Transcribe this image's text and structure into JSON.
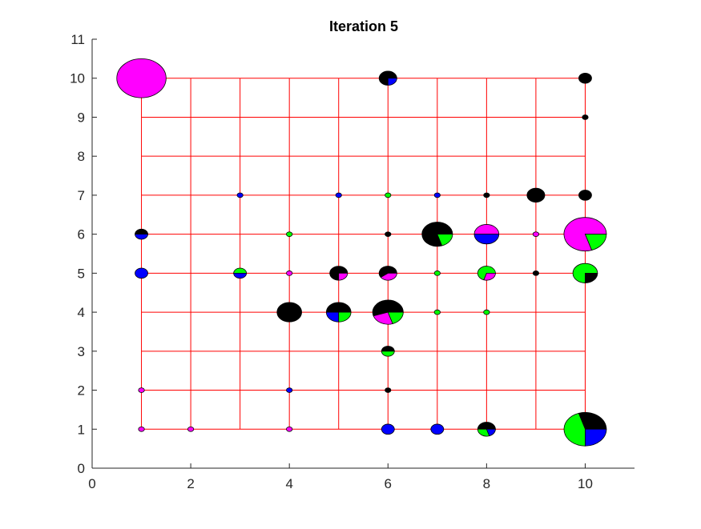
{
  "chart_data": {
    "type": "scatter",
    "subtype": "pie-glyph-map",
    "title": "Iteration 5",
    "xlabel": "",
    "ylabel": "",
    "xlim": [
      0,
      11
    ],
    "ylim": [
      0,
      11
    ],
    "x_ticks": [
      0,
      2,
      4,
      6,
      8,
      10
    ],
    "y_ticks": [
      0,
      1,
      2,
      3,
      4,
      5,
      6,
      7,
      8,
      9,
      10,
      11
    ],
    "x_tick_labels": [
      "0",
      "2",
      "4",
      "6",
      "8",
      "10"
    ],
    "y_tick_labels": [
      "0",
      "1",
      "2",
      "3",
      "4",
      "5",
      "6",
      "7",
      "8",
      "9",
      "10",
      "11"
    ],
    "grid": false,
    "colors": {
      "network": "#ff0000",
      "axis": "#262626",
      "slice_black": "#000000",
      "slice_blue": "#0000ff",
      "slice_green": "#00ff00",
      "slice_magenta": "#ff00ff",
      "outline": "#000000"
    },
    "network": {
      "vertical_lines": [
        {
          "x": 1,
          "y0": 1,
          "y1": 10
        },
        {
          "x": 2,
          "y0": 1,
          "y1": 10
        },
        {
          "x": 3,
          "y0": 1,
          "y1": 10
        },
        {
          "x": 4,
          "y0": 1,
          "y1": 10
        },
        {
          "x": 5,
          "y0": 1,
          "y1": 10
        },
        {
          "x": 6,
          "y0": 1,
          "y1": 10
        },
        {
          "x": 7,
          "y0": 1,
          "y1": 10
        },
        {
          "x": 8,
          "y0": 1,
          "y1": 10
        },
        {
          "x": 9,
          "y0": 1,
          "y1": 10
        },
        {
          "x": 10,
          "y0": 1,
          "y1": 10
        }
      ],
      "horizontal_lines": [
        {
          "y": 1,
          "x0": 1,
          "x1": 10
        },
        {
          "y": 2,
          "x0": 1,
          "x1": 10
        },
        {
          "y": 3,
          "x0": 1,
          "x1": 10
        },
        {
          "y": 4,
          "x0": 1,
          "x1": 10
        },
        {
          "y": 5,
          "x0": 1,
          "x1": 10
        },
        {
          "y": 6,
          "x0": 1,
          "x1": 10
        },
        {
          "y": 7,
          "x0": 1,
          "x1": 10
        },
        {
          "y": 8,
          "x0": 1,
          "x1": 10
        },
        {
          "y": 9,
          "x0": 1,
          "x1": 10
        },
        {
          "y": 10,
          "x0": 1,
          "x1": 10
        }
      ]
    },
    "nodes": [
      {
        "x": 1,
        "y": 10,
        "r": 0.5,
        "slices": [
          {
            "color": "magenta",
            "value": 1
          }
        ]
      },
      {
        "x": 6,
        "y": 10,
        "r": 0.18,
        "slices": [
          {
            "color": "black",
            "value": 0.75
          },
          {
            "color": "blue",
            "value": 0.25
          }
        ]
      },
      {
        "x": 10,
        "y": 10,
        "r": 0.13,
        "slices": [
          {
            "color": "black",
            "value": 1
          }
        ]
      },
      {
        "x": 10,
        "y": 9,
        "r": 0.06,
        "slices": [
          {
            "color": "black",
            "value": 1
          }
        ]
      },
      {
        "x": 3,
        "y": 7,
        "r": 0.06,
        "slices": [
          {
            "color": "blue",
            "value": 1
          }
        ]
      },
      {
        "x": 5,
        "y": 7,
        "r": 0.06,
        "slices": [
          {
            "color": "blue",
            "value": 1
          }
        ]
      },
      {
        "x": 6,
        "y": 7,
        "r": 0.06,
        "slices": [
          {
            "color": "green",
            "value": 1
          }
        ]
      },
      {
        "x": 7,
        "y": 7,
        "r": 0.06,
        "slices": [
          {
            "color": "blue",
            "value": 1
          }
        ]
      },
      {
        "x": 8,
        "y": 7,
        "r": 0.06,
        "slices": [
          {
            "color": "black",
            "value": 1
          }
        ]
      },
      {
        "x": 9,
        "y": 7,
        "r": 0.18,
        "slices": [
          {
            "color": "black",
            "value": 1
          }
        ]
      },
      {
        "x": 10,
        "y": 7,
        "r": 0.13,
        "slices": [
          {
            "color": "black",
            "value": 1
          }
        ]
      },
      {
        "x": 1,
        "y": 6,
        "r": 0.13,
        "slices": [
          {
            "color": "black",
            "value": 0.5
          },
          {
            "color": "blue",
            "value": 0.5
          }
        ]
      },
      {
        "x": 4,
        "y": 6,
        "r": 0.06,
        "slices": [
          {
            "color": "green",
            "value": 1
          }
        ]
      },
      {
        "x": 6,
        "y": 6,
        "r": 0.06,
        "slices": [
          {
            "color": "black",
            "value": 1
          }
        ]
      },
      {
        "x": 7,
        "y": 6,
        "r": 0.31,
        "slices": [
          {
            "color": "black",
            "value": 0.8
          },
          {
            "color": "green",
            "value": 0.2
          }
        ]
      },
      {
        "x": 8,
        "y": 6,
        "r": 0.25,
        "slices": [
          {
            "color": "magenta",
            "value": 0.5
          },
          {
            "color": "blue",
            "value": 0.5
          }
        ]
      },
      {
        "x": 9,
        "y": 6,
        "r": 0.06,
        "slices": [
          {
            "color": "magenta",
            "value": 1
          }
        ]
      },
      {
        "x": 10,
        "y": 6,
        "r": 0.43,
        "slices": [
          {
            "color": "magenta",
            "value": 0.8
          },
          {
            "color": "green",
            "value": 0.2
          }
        ]
      },
      {
        "x": 1,
        "y": 5,
        "r": 0.13,
        "slices": [
          {
            "color": "blue",
            "value": 1
          }
        ]
      },
      {
        "x": 3,
        "y": 5,
        "r": 0.13,
        "slices": [
          {
            "color": "green",
            "value": 0.5
          },
          {
            "color": "blue",
            "value": 0.5
          }
        ]
      },
      {
        "x": 4,
        "y": 5,
        "r": 0.06,
        "slices": [
          {
            "color": "magenta",
            "value": 1
          }
        ]
      },
      {
        "x": 5,
        "y": 5,
        "r": 0.18,
        "slices": [
          {
            "color": "black",
            "value": 0.75
          },
          {
            "color": "magenta",
            "value": 0.25
          }
        ]
      },
      {
        "x": 6,
        "y": 5,
        "r": 0.18,
        "slices": [
          {
            "color": "black",
            "value": 0.6
          },
          {
            "color": "magenta",
            "value": 0.4
          }
        ]
      },
      {
        "x": 7,
        "y": 5,
        "r": 0.06,
        "slices": [
          {
            "color": "green",
            "value": 1
          }
        ]
      },
      {
        "x": 8,
        "y": 5,
        "r": 0.18,
        "slices": [
          {
            "color": "green",
            "value": 0.7
          },
          {
            "color": "magenta",
            "value": 0.3
          }
        ]
      },
      {
        "x": 9,
        "y": 5,
        "r": 0.06,
        "slices": [
          {
            "color": "black",
            "value": 1
          }
        ]
      },
      {
        "x": 10,
        "y": 5,
        "r": 0.25,
        "slices": [
          {
            "color": "green",
            "value": 0.75
          },
          {
            "color": "black",
            "value": 0.25
          }
        ]
      },
      {
        "x": 4,
        "y": 4,
        "r": 0.25,
        "slices": [
          {
            "color": "black",
            "value": 1
          }
        ]
      },
      {
        "x": 5,
        "y": 4,
        "r": 0.25,
        "slices": [
          {
            "color": "black",
            "value": 0.5
          },
          {
            "color": "blue",
            "value": 0.25
          },
          {
            "color": "green",
            "value": 0.25
          }
        ]
      },
      {
        "x": 6,
        "y": 4,
        "r": 0.31,
        "slices": [
          {
            "color": "black",
            "value": 0.55
          },
          {
            "color": "magenta",
            "value": 0.25
          },
          {
            "color": "green",
            "value": 0.2
          }
        ]
      },
      {
        "x": 7,
        "y": 4,
        "r": 0.06,
        "slices": [
          {
            "color": "green",
            "value": 1
          }
        ]
      },
      {
        "x": 8,
        "y": 4,
        "r": 0.06,
        "slices": [
          {
            "color": "green",
            "value": 1
          }
        ]
      },
      {
        "x": 6,
        "y": 3,
        "r": 0.13,
        "slices": [
          {
            "color": "black",
            "value": 0.5
          },
          {
            "color": "green",
            "value": 0.5
          }
        ]
      },
      {
        "x": 1,
        "y": 2,
        "r": 0.06,
        "slices": [
          {
            "color": "magenta",
            "value": 1
          }
        ]
      },
      {
        "x": 4,
        "y": 2,
        "r": 0.06,
        "slices": [
          {
            "color": "blue",
            "value": 1
          }
        ]
      },
      {
        "x": 6,
        "y": 2,
        "r": 0.06,
        "slices": [
          {
            "color": "black",
            "value": 1
          }
        ]
      },
      {
        "x": 1,
        "y": 1,
        "r": 0.06,
        "slices": [
          {
            "color": "magenta",
            "value": 1
          }
        ]
      },
      {
        "x": 2,
        "y": 1,
        "r": 0.06,
        "slices": [
          {
            "color": "magenta",
            "value": 1
          }
        ]
      },
      {
        "x": 4,
        "y": 1,
        "r": 0.06,
        "slices": [
          {
            "color": "magenta",
            "value": 1
          }
        ]
      },
      {
        "x": 6,
        "y": 1,
        "r": 0.13,
        "slices": [
          {
            "color": "blue",
            "value": 1
          }
        ]
      },
      {
        "x": 7,
        "y": 1,
        "r": 0.13,
        "slices": [
          {
            "color": "blue",
            "value": 1
          }
        ]
      },
      {
        "x": 8,
        "y": 1,
        "r": 0.18,
        "slices": [
          {
            "color": "black",
            "value": 0.5
          },
          {
            "color": "green",
            "value": 0.3
          },
          {
            "color": "blue",
            "value": 0.2
          }
        ]
      },
      {
        "x": 10,
        "y": 1,
        "r": 0.43,
        "slices": [
          {
            "color": "black",
            "value": 0.3
          },
          {
            "color": "green",
            "value": 0.45
          },
          {
            "color": "blue",
            "value": 0.25
          }
        ]
      }
    ]
  }
}
